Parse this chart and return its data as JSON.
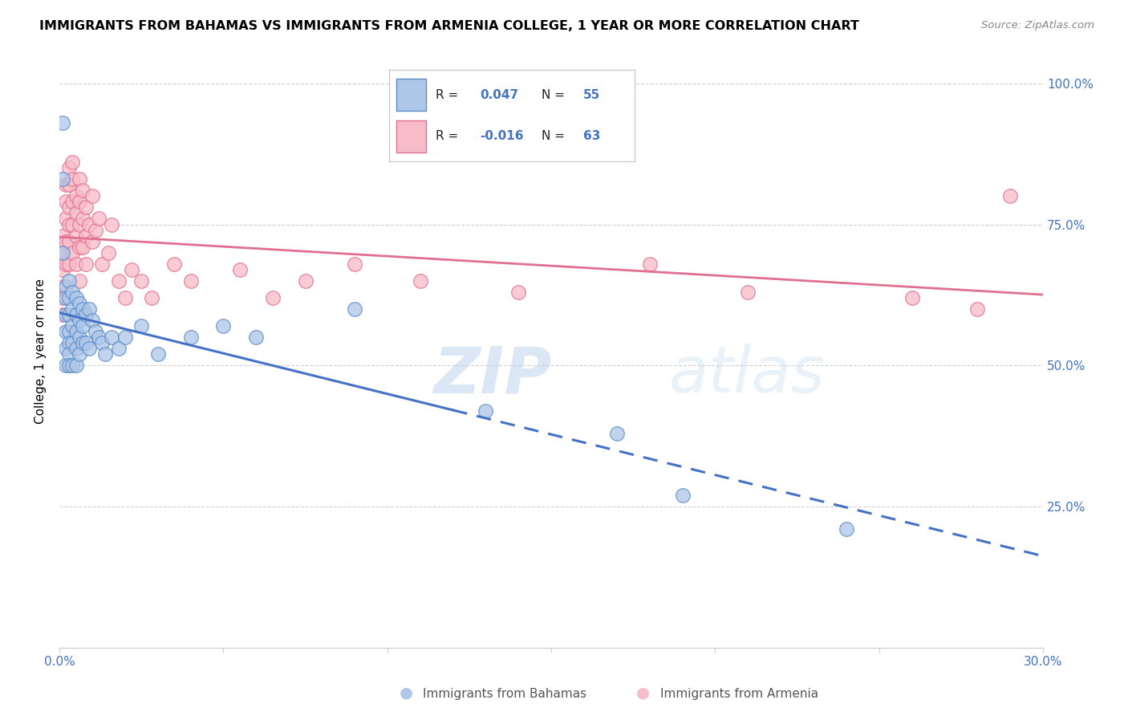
{
  "title": "IMMIGRANTS FROM BAHAMAS VS IMMIGRANTS FROM ARMENIA COLLEGE, 1 YEAR OR MORE CORRELATION CHART",
  "source": "Source: ZipAtlas.com",
  "ylabel": "College, 1 year or more",
  "legend": {
    "bahamas": {
      "R": 0.047,
      "N": 55,
      "face_color": "#aec6e8",
      "edge_color": "#5b8cc8",
      "line_color": "#4472c4"
    },
    "armenia": {
      "R": -0.016,
      "N": 63,
      "face_color": "#f7bcc8",
      "edge_color": "#e07090",
      "line_color": "#e07090"
    }
  },
  "watermark": "ZIPatlas",
  "xlim": [
    0.0,
    0.3
  ],
  "ylim": [
    0.0,
    1.05
  ],
  "bahamas_x": [
    0.001,
    0.001,
    0.001,
    0.002,
    0.002,
    0.002,
    0.002,
    0.002,
    0.002,
    0.003,
    0.003,
    0.003,
    0.003,
    0.003,
    0.003,
    0.003,
    0.004,
    0.004,
    0.004,
    0.004,
    0.004,
    0.005,
    0.005,
    0.005,
    0.005,
    0.005,
    0.006,
    0.006,
    0.006,
    0.006,
    0.007,
    0.007,
    0.007,
    0.008,
    0.008,
    0.009,
    0.009,
    0.01,
    0.011,
    0.012,
    0.013,
    0.014,
    0.016,
    0.018,
    0.02,
    0.025,
    0.03,
    0.04,
    0.05,
    0.06,
    0.09,
    0.13,
    0.17,
    0.19,
    0.24
  ],
  "bahamas_y": [
    0.93,
    0.83,
    0.7,
    0.64,
    0.62,
    0.59,
    0.56,
    0.53,
    0.5,
    0.65,
    0.62,
    0.59,
    0.56,
    0.54,
    0.52,
    0.5,
    0.63,
    0.6,
    0.57,
    0.54,
    0.5,
    0.62,
    0.59,
    0.56,
    0.53,
    0.5,
    0.61,
    0.58,
    0.55,
    0.52,
    0.6,
    0.57,
    0.54,
    0.59,
    0.54,
    0.6,
    0.53,
    0.58,
    0.56,
    0.55,
    0.54,
    0.52,
    0.55,
    0.53,
    0.55,
    0.57,
    0.52,
    0.55,
    0.57,
    0.55,
    0.6,
    0.42,
    0.38,
    0.27,
    0.21
  ],
  "armenia_x": [
    0.001,
    0.001,
    0.001,
    0.001,
    0.001,
    0.001,
    0.002,
    0.002,
    0.002,
    0.002,
    0.002,
    0.003,
    0.003,
    0.003,
    0.003,
    0.003,
    0.003,
    0.004,
    0.004,
    0.004,
    0.004,
    0.004,
    0.005,
    0.005,
    0.005,
    0.005,
    0.006,
    0.006,
    0.006,
    0.006,
    0.006,
    0.007,
    0.007,
    0.007,
    0.008,
    0.008,
    0.008,
    0.009,
    0.01,
    0.01,
    0.011,
    0.012,
    0.013,
    0.015,
    0.016,
    0.018,
    0.02,
    0.022,
    0.025,
    0.028,
    0.035,
    0.04,
    0.055,
    0.065,
    0.075,
    0.09,
    0.11,
    0.14,
    0.18,
    0.21,
    0.26,
    0.28,
    0.29
  ],
  "armenia_y": [
    0.73,
    0.7,
    0.67,
    0.64,
    0.62,
    0.59,
    0.82,
    0.79,
    0.76,
    0.72,
    0.68,
    0.85,
    0.82,
    0.78,
    0.75,
    0.72,
    0.68,
    0.86,
    0.83,
    0.79,
    0.75,
    0.7,
    0.8,
    0.77,
    0.73,
    0.68,
    0.83,
    0.79,
    0.75,
    0.71,
    0.65,
    0.81,
    0.76,
    0.71,
    0.78,
    0.73,
    0.68,
    0.75,
    0.8,
    0.72,
    0.74,
    0.76,
    0.68,
    0.7,
    0.75,
    0.65,
    0.62,
    0.67,
    0.65,
    0.62,
    0.68,
    0.65,
    0.67,
    0.62,
    0.65,
    0.68,
    0.65,
    0.63,
    0.68,
    0.63,
    0.62,
    0.6,
    0.8
  ]
}
